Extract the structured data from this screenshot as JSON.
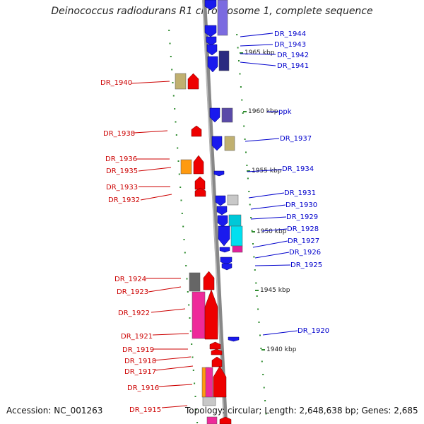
{
  "title": "Deinococcus radiodurans R1 chromosome 1, complete sequence",
  "footer": {
    "accession": "Accession: NC_001263",
    "topology": "Topology: circular; Length: 2,648,638 bp; Genes: 2,685"
  },
  "colors": {
    "plus_strand_label": "#cc0000",
    "minus_strand_label": "#0000cc",
    "backbone": "#888888",
    "tick": "#2e8b2e"
  },
  "kbp_marks": [
    "1965 kbp",
    "1960 kbp",
    "1955 kbp",
    "1950 kbp",
    "1945 kbp",
    "1940 kbp"
  ],
  "genes_plus": [
    {
      "label": "DR_1940"
    },
    {
      "label": "DR_1938"
    },
    {
      "label": "DR_1936"
    },
    {
      "label": "DR_1935"
    },
    {
      "label": "DR_1933"
    },
    {
      "label": "DR_1932"
    },
    {
      "label": "DR_1924"
    },
    {
      "label": "DR_1923"
    },
    {
      "label": "DR_1922"
    },
    {
      "label": "DR_1921"
    },
    {
      "label": "DR_1919"
    },
    {
      "label": "DR_1918"
    },
    {
      "label": "DR_1917"
    },
    {
      "label": "DR_1916"
    },
    {
      "label": "DR_1915"
    }
  ],
  "genes_minus": [
    {
      "label": "DR_1944"
    },
    {
      "label": "DR_1943"
    },
    {
      "label": "DR_1942"
    },
    {
      "label": "DR_1941"
    },
    {
      "label": "ppk"
    },
    {
      "label": "DR_1937"
    },
    {
      "label": "DR_1934"
    },
    {
      "label": "DR_1931"
    },
    {
      "label": "DR_1930"
    },
    {
      "label": "DR_1929"
    },
    {
      "label": "DR_1928"
    },
    {
      "label": "DR_1927"
    },
    {
      "label": "DR_1926"
    },
    {
      "label": "DR_1925"
    },
    {
      "label": "DR_1920"
    }
  ]
}
